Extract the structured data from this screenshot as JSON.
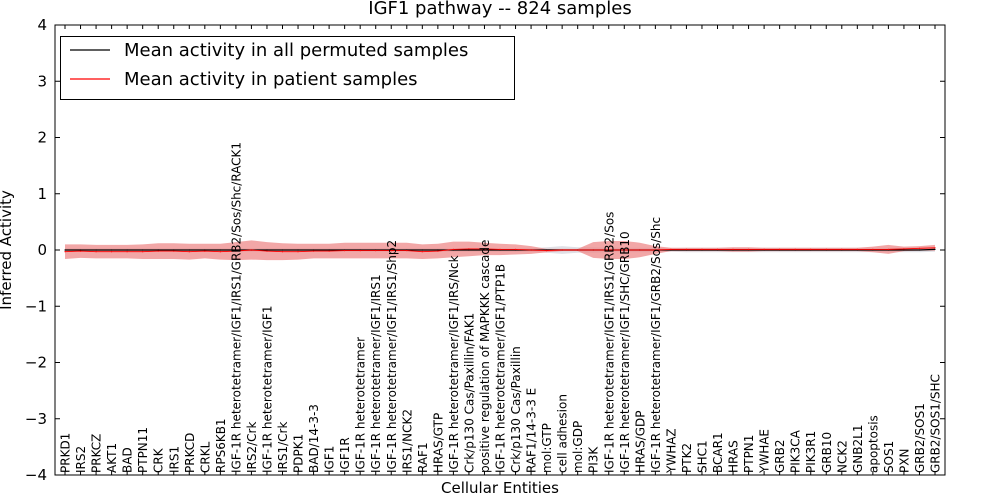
{
  "chart_data": {
    "type": "line",
    "title": "IGF1 pathway -- 824 samples",
    "xlabel": "Cellular Entities",
    "ylabel": "Inferred Activity",
    "ylim": [
      -4,
      4
    ],
    "yticks": [
      -4,
      -3,
      -2,
      -1,
      0,
      1,
      2,
      3,
      4
    ],
    "yticklabels": [
      "−4",
      "−3",
      "−2",
      "−1",
      "0",
      "1",
      "2",
      "3",
      "4"
    ],
    "categories": [
      "PRKD1",
      "IRS2",
      "PRKCZ",
      "AKT1",
      "BAD",
      "PTPN11",
      "CRK",
      "IRS1",
      "PRKCD",
      "CRKL",
      "RPS6KB1",
      "IGF-1R heterotetramer/IGF1/IRS1/GRB2/Sos/Shc/RACK1",
      "IRS2/Crk",
      "IGF-1R heterotetramer/IGF1",
      "IRS1/Crk",
      "PDPK1",
      "BAD/14-3-3",
      "IGF1",
      "IGF1R",
      "IGF-1R heterotetramer",
      "IGF-1R heterotetramer/IGF1/IRS1",
      "IGF-1R heterotetramer/IGF1/IRS1/Shp2",
      "IRS1/NCK2",
      "RAF1",
      "HRAS/GTP",
      "IGF-1R heterotetramer/IGF1/IRS/Nck",
      "Crk/p130 Cas/Paxillin/FAK1",
      "positive regulation of MAPKKK cascade",
      "IGF-1R heterotetramer/IGF1/PTP1B",
      "Crk/p130 Cas/Paxillin",
      "RAF1/14-3-3 E",
      "mol:GTP",
      "cell adhesion",
      "mol:GDP",
      "PI3K",
      "IGF-1R heterotetramer/IGF1/IRS1/GRB2/Sos",
      "IGF-1R heterotetramer/IGF1/SHC/GRB10",
      "HRAS/GDP",
      "IGF-1R heterotetramer/IGF1/GRB2/Sos/Shc",
      "YWHAZ",
      "PTK2",
      "SHC1",
      "BCAR1",
      "HRAS",
      "PTPN1",
      "YWHAE",
      "GRB2",
      "PIK3CA",
      "PIK3R1",
      "GRB10",
      "NCK2",
      "GNB2L1",
      "apoptosis",
      "SOS1",
      "PXN",
      "GRB2/SOS1",
      "GRB2/SOS1/SHC"
    ],
    "series": [
      {
        "name": "Mean activity in all permuted samples",
        "color": "#000000",
        "band_color": "#d8d8e0",
        "values": [
          0.0,
          0.0,
          0.0,
          0.0,
          0.0,
          0.0,
          0.0,
          0.0,
          0.0,
          0.0,
          0.0,
          0.0,
          0.0,
          0.0,
          0.0,
          0.0,
          0.0,
          0.0,
          0.0,
          0.0,
          0.0,
          0.0,
          0.0,
          0.0,
          0.0,
          0.0,
          0.0,
          0.0,
          0.0,
          0.0,
          0.0,
          0.0,
          0.0,
          0.0,
          0.0,
          0.0,
          0.0,
          0.0,
          0.0,
          0.0,
          0.0,
          0.0,
          0.0,
          0.0,
          0.0,
          0.0,
          0.0,
          0.0,
          0.0,
          0.0,
          0.0,
          0.0,
          0.0,
          0.0,
          0.0,
          0.0,
          0.01
        ],
        "spread": [
          0.03,
          0.03,
          0.03,
          0.03,
          0.03,
          0.03,
          0.03,
          0.03,
          0.03,
          0.03,
          0.03,
          0.03,
          0.03,
          0.03,
          0.03,
          0.03,
          0.03,
          0.03,
          0.03,
          0.03,
          0.03,
          0.03,
          0.03,
          0.03,
          0.03,
          0.03,
          0.03,
          0.03,
          0.03,
          0.03,
          0.03,
          0.05,
          0.07,
          0.05,
          0.05,
          0.04,
          0.04,
          0.04,
          0.04,
          0.03,
          0.04,
          0.04,
          0.04,
          0.04,
          0.04,
          0.04,
          0.04,
          0.04,
          0.04,
          0.04,
          0.04,
          0.04,
          0.04,
          0.04,
          0.04,
          0.04,
          0.04
        ]
      },
      {
        "name": "Mean activity in patient samples",
        "color": "#ff0000",
        "band_color": "#ee8a8a",
        "values": [
          -0.03,
          -0.02,
          -0.03,
          -0.03,
          -0.03,
          -0.03,
          -0.02,
          -0.02,
          -0.03,
          -0.02,
          -0.03,
          -0.02,
          0.0,
          -0.02,
          -0.03,
          -0.03,
          -0.02,
          -0.02,
          -0.01,
          -0.01,
          -0.01,
          -0.01,
          -0.01,
          -0.03,
          -0.02,
          0.01,
          0.02,
          0.02,
          0.01,
          0.01,
          0.0,
          -0.01,
          0.0,
          0.0,
          0.0,
          0.0,
          0.0,
          0.0,
          0.0,
          0.01,
          0.01,
          0.01,
          0.01,
          0.01,
          0.01,
          0.01,
          0.01,
          0.01,
          0.01,
          0.01,
          0.01,
          0.01,
          0.01,
          0.01,
          0.02,
          0.03,
          0.04
        ],
        "spread": [
          0.13,
          0.12,
          0.12,
          0.12,
          0.12,
          0.13,
          0.14,
          0.14,
          0.14,
          0.13,
          0.14,
          0.16,
          0.17,
          0.16,
          0.15,
          0.14,
          0.13,
          0.13,
          0.14,
          0.14,
          0.14,
          0.14,
          0.14,
          0.13,
          0.13,
          0.14,
          0.13,
          0.11,
          0.1,
          0.09,
          0.07,
          0.03,
          0.02,
          0.02,
          0.14,
          0.16,
          0.16,
          0.13,
          0.07,
          0.03,
          0.03,
          0.03,
          0.03,
          0.04,
          0.04,
          0.03,
          0.03,
          0.03,
          0.03,
          0.03,
          0.03,
          0.03,
          0.05,
          0.08,
          0.04,
          0.04,
          0.05
        ]
      }
    ],
    "legend_location": "upper-left"
  }
}
